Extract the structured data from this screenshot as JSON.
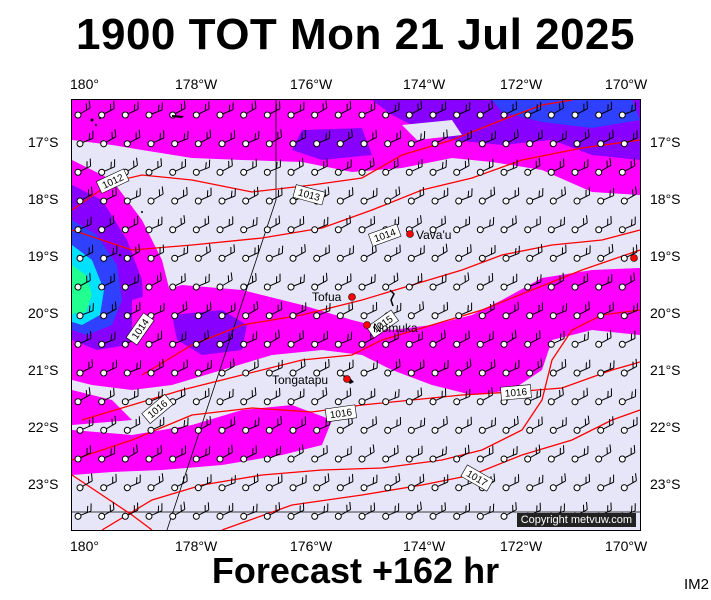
{
  "header": {
    "title": "1900 TOT Mon 21 Jul 2025"
  },
  "footer": {
    "forecast": "Forecast +162 hr",
    "model_id": "IM2"
  },
  "map": {
    "copyright": "Copyright metvuw.com",
    "colors": {
      "background": "#e6e6f8",
      "magenta": "#ff00ff",
      "purple": "#8800ff",
      "blue": "#3040ff",
      "cyan": "#00e0ff",
      "green": "#20ff90",
      "isobar": "#ff0000"
    },
    "lon_labels": [
      "180°",
      "178°W",
      "176°W",
      "174°W",
      "172°W",
      "170°W"
    ],
    "lat_labels": [
      "17°S",
      "18°S",
      "19°S",
      "20°S",
      "21°S",
      "22°S",
      "23°S"
    ],
    "places": [
      {
        "name": "Vava'u",
        "label": "Vava'u"
      },
      {
        "name": "Tofua",
        "label": "Tofua"
      },
      {
        "name": "Nomuka",
        "label": "Nomuka"
      },
      {
        "name": "Tongatapu",
        "label": "Tongatapu"
      }
    ],
    "isobars": [
      "1012",
      "1013",
      "1014",
      "1015",
      "1016",
      "1016",
      "1016",
      "1017",
      "1014"
    ]
  }
}
